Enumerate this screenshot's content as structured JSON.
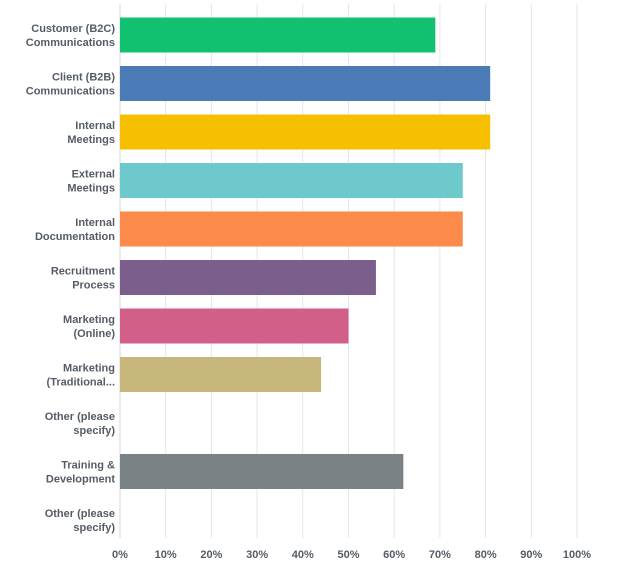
{
  "chart_data": {
    "type": "bar",
    "orientation": "horizontal",
    "title": "",
    "xlabel": "",
    "ylabel": "",
    "xlim": [
      0,
      100
    ],
    "grid": true,
    "legend": "none",
    "categories": [
      [
        "Customer (B2C)",
        "Communications"
      ],
      [
        "Client (B2B)",
        "Communications"
      ],
      [
        "Internal",
        "Meetings"
      ],
      [
        "External",
        "Meetings"
      ],
      [
        "Internal",
        "Documentation"
      ],
      [
        "Recruitment",
        "Process"
      ],
      [
        "Marketing",
        "(Online)"
      ],
      [
        "Marketing",
        "(Traditional..."
      ],
      [
        "Other (please",
        "specify)"
      ],
      [
        "Training &",
        "Development"
      ],
      [
        "Other (please",
        "specify)"
      ]
    ],
    "values": [
      69,
      81,
      81,
      75,
      75,
      56,
      50,
      44,
      0,
      62,
      0
    ],
    "colors": [
      "#11c16f",
      "#4b7bb7",
      "#f6c000",
      "#6dc9cb",
      "#fb8a4b",
      "#7b5e8b",
      "#d25f89",
      "#c8b77a",
      "#999999",
      "#7a8285",
      "#999999"
    ],
    "x_ticks": [
      "0%",
      "10%",
      "20%",
      "30%",
      "40%",
      "50%",
      "60%",
      "70%",
      "80%",
      "90%",
      "100%"
    ]
  }
}
